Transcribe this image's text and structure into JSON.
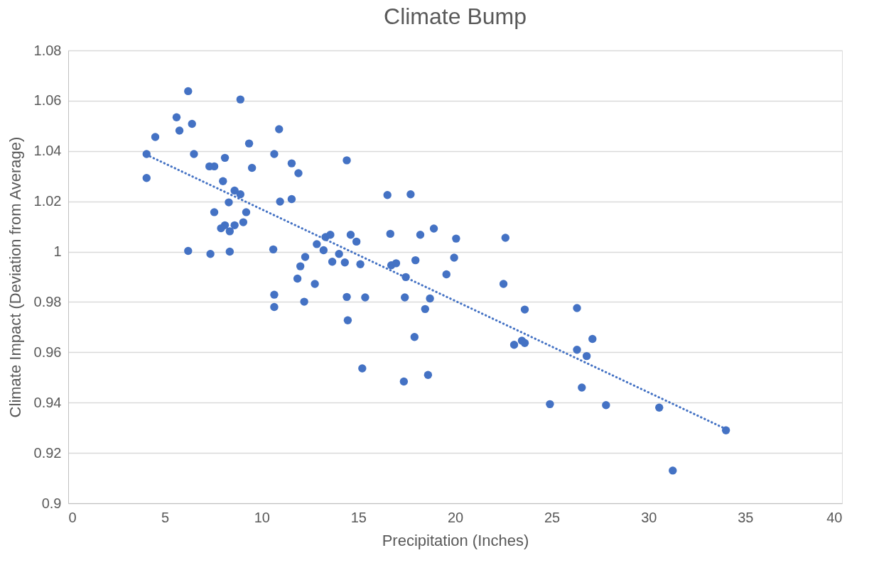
{
  "chart_data": {
    "type": "scatter",
    "title": "Climate Bump",
    "xlabel": "Precipitation (Inches)",
    "ylabel": "Climate Impact (Deviation from Average)",
    "xlim": [
      0,
      40
    ],
    "xticks": [
      0,
      5,
      10,
      15,
      20,
      25,
      30,
      35,
      40
    ],
    "ylim": [
      0.9,
      1.08
    ],
    "yticks": [
      0.9,
      0.92,
      0.94,
      0.96,
      0.98,
      1,
      1.02,
      1.04,
      1.06,
      1.08
    ],
    "grid": "y",
    "series": [
      {
        "type": "scatter",
        "color": "#4472c4",
        "marker": "circle",
        "x": [
          6.2,
          8.9,
          5.6,
          6.4,
          5.75,
          4.5,
          10.9,
          9.35,
          4.05,
          6.5,
          10.65,
          8.1,
          7.3,
          7.55,
          9.5,
          11.55,
          11.9,
          4.05,
          8.0,
          8.6,
          8.9,
          10.95,
          11.55,
          8.3,
          7.55,
          9.2,
          9.05,
          8.6,
          8.1,
          7.9,
          8.35,
          6.2,
          7.35,
          8.35,
          10.6,
          12.85,
          13.2,
          12.25,
          12.0,
          11.85,
          12.75,
          10.65,
          10.65,
          12.2,
          13.3,
          13.55,
          14.6,
          14.9,
          14.0,
          13.65,
          14.3,
          15.1,
          14.4,
          16.5,
          17.7,
          16.65,
          18.2,
          18.9,
          20.05,
          19.95,
          17.95,
          19.55,
          16.7,
          16.95,
          17.45,
          14.4,
          15.35,
          17.4,
          18.7,
          18.45,
          14.45,
          17.9,
          15.2,
          17.35,
          18.6,
          22.6,
          22.5,
          23.6,
          23.05,
          23.6,
          23.45,
          26.3,
          26.3,
          26.8,
          27.1,
          26.55,
          24.9,
          27.8,
          30.55,
          31.25,
          34.0
        ],
        "values": [
          1.0638,
          1.0605,
          1.0534,
          1.0508,
          1.0481,
          1.0456,
          1.0487,
          1.043,
          1.0388,
          1.0388,
          1.0388,
          1.0373,
          1.0339,
          1.0339,
          1.0333,
          1.0351,
          1.0312,
          1.0293,
          1.028,
          1.0243,
          1.0228,
          1.0199,
          1.0209,
          1.0196,
          1.0157,
          1.0157,
          1.0117,
          1.0105,
          1.0105,
          1.0093,
          1.0081,
          1.0003,
          0.9991,
          1.0,
          1.0009,
          1.003,
          1.0006,
          0.9979,
          0.9942,
          0.9893,
          0.9872,
          0.9829,
          0.978,
          0.9801,
          1.0058,
          1.0067,
          1.0067,
          1.004,
          0.9991,
          0.996,
          0.9957,
          0.995,
          1.0363,
          1.0225,
          1.0228,
          1.0071,
          1.0067,
          1.0092,
          1.0052,
          0.9976,
          0.9966,
          0.991,
          0.9946,
          0.9954,
          0.9899,
          0.982,
          0.9818,
          0.9818,
          0.9814,
          0.9772,
          0.9727,
          0.9661,
          0.9536,
          0.9484,
          0.951,
          1.0055,
          0.9872,
          0.977,
          0.963,
          0.9637,
          0.9646,
          0.9776,
          0.961,
          0.9585,
          0.9653,
          0.946,
          0.9394,
          0.939,
          0.938,
          0.913,
          0.929
        ]
      },
      {
        "type": "line",
        "color": "#4472c4",
        "line_style": "dotted",
        "x": [
          4.05,
          34.0
        ],
        "values": [
          1.0385,
          0.9295
        ]
      }
    ]
  }
}
